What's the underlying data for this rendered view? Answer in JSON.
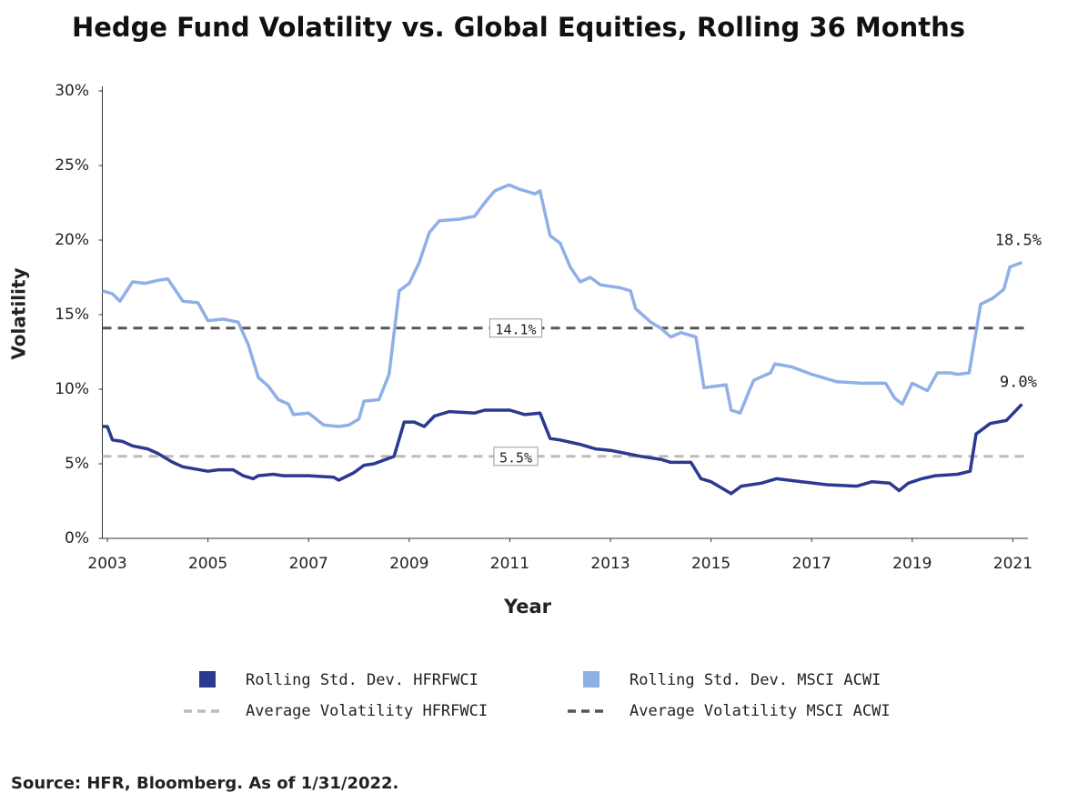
{
  "chart_data": {
    "type": "line",
    "title": "Hedge Fund Volatility vs. Global Equities, Rolling 36 Months",
    "xlabel": "Year",
    "ylabel": "Volatility",
    "source": "Source:  HFR, Bloomberg. As of 1/31/2022.",
    "xlim": [
      2002.9,
      2021.3
    ],
    "xticks": [
      2003,
      2005,
      2007,
      2009,
      2011,
      2013,
      2015,
      2017,
      2019,
      2021
    ],
    "ylim": [
      0,
      30
    ],
    "yticks": [
      {
        "value": 0,
        "label": "0%"
      },
      {
        "value": 5,
        "label": "5%"
      },
      {
        "value": 10,
        "label": "10%"
      },
      {
        "value": 15,
        "label": "15%"
      },
      {
        "value": 20,
        "label": "20%"
      },
      {
        "value": 25,
        "label": "25%"
      },
      {
        "value": 30,
        "label": "30%"
      }
    ],
    "series": [
      {
        "name": "Rolling Std. Dev. HFRFWCI",
        "color": "#2b3990",
        "end_label": "9.0%",
        "x": [
          2002.9,
          2003.0,
          2003.1,
          2003.3,
          2003.5,
          2003.8,
          2004.0,
          2004.3,
          2004.5,
          2005.0,
          2005.2,
          2005.5,
          2005.7,
          2005.9,
          2006.0,
          2006.3,
          2006.5,
          2007.0,
          2007.5,
          2007.6,
          2007.9,
          2008.1,
          2008.3,
          2008.7,
          2008.9,
          2009.1,
          2009.3,
          2009.5,
          2009.8,
          2010.3,
          2010.5,
          2011.0,
          2011.3,
          2011.6,
          2011.8,
          2012.0,
          2012.4,
          2012.7,
          2013.0,
          2013.3,
          2013.6,
          2014.0,
          2014.2,
          2014.6,
          2014.8,
          2015.0,
          2015.2,
          2015.4,
          2015.6,
          2016.0,
          2016.3,
          2016.8,
          2017.3,
          2017.9,
          2018.2,
          2018.55,
          2018.74,
          2018.92,
          2019.19,
          2019.46,
          2019.9,
          2020.15,
          2020.27,
          2020.55,
          2020.87,
          2021.18
        ],
        "values": [
          7.5,
          7.5,
          6.6,
          6.5,
          6.2,
          6.0,
          5.7,
          5.1,
          4.8,
          4.5,
          4.6,
          4.6,
          4.2,
          4.0,
          4.2,
          4.3,
          4.2,
          4.2,
          4.1,
          3.9,
          4.4,
          4.9,
          5.0,
          5.5,
          7.8,
          7.8,
          7.5,
          8.2,
          8.5,
          8.4,
          8.6,
          8.6,
          8.3,
          8.4,
          6.7,
          6.6,
          6.3,
          6.0,
          5.9,
          5.7,
          5.5,
          5.3,
          5.1,
          5.1,
          4.0,
          3.8,
          3.4,
          3.0,
          3.5,
          3.7,
          4.0,
          3.8,
          3.6,
          3.5,
          3.8,
          3.7,
          3.2,
          3.7,
          4.0,
          4.2,
          4.3,
          4.5,
          7.0,
          7.7,
          7.9,
          9.0
        ]
      },
      {
        "name": "Rolling Std. Dev. MSCI ACWI",
        "color": "#8fb0e6",
        "end_label": "18.5%",
        "x": [
          2002.9,
          2003.1,
          2003.25,
          2003.5,
          2003.75,
          2004.0,
          2004.2,
          2004.5,
          2004.8,
          2005.0,
          2005.3,
          2005.6,
          2005.8,
          2006.0,
          2006.2,
          2006.4,
          2006.6,
          2006.7,
          2007.0,
          2007.3,
          2007.6,
          2007.8,
          2008.0,
          2008.1,
          2008.4,
          2008.6,
          2008.8,
          2009.0,
          2009.2,
          2009.4,
          2009.6,
          2010.0,
          2010.3,
          2010.5,
          2010.7,
          2010.98,
          2011.2,
          2011.5,
          2011.6,
          2011.8,
          2012.0,
          2012.2,
          2012.4,
          2012.6,
          2012.8,
          2013.2,
          2013.4,
          2013.5,
          2013.8,
          2014.0,
          2014.2,
          2014.4,
          2014.7,
          2014.86,
          2015.3,
          2015.4,
          2015.58,
          2015.76,
          2015.85,
          2016.18,
          2016.27,
          2016.6,
          2017.0,
          2017.5,
          2018.0,
          2018.47,
          2018.65,
          2018.8,
          2019.0,
          2019.3,
          2019.5,
          2019.75,
          2019.9,
          2020.13,
          2020.36,
          2020.6,
          2020.82,
          2020.94,
          2021.18
        ],
        "values": [
          16.6,
          16.4,
          15.9,
          17.2,
          17.1,
          17.3,
          17.4,
          15.9,
          15.8,
          14.6,
          14.7,
          14.5,
          13.0,
          10.8,
          10.2,
          9.3,
          9.0,
          8.3,
          8.4,
          7.6,
          7.5,
          7.6,
          8.0,
          9.2,
          9.3,
          11.0,
          16.6,
          17.1,
          18.5,
          20.5,
          21.3,
          21.4,
          21.6,
          22.5,
          23.3,
          23.7,
          23.4,
          23.1,
          23.3,
          20.3,
          19.8,
          18.2,
          17.2,
          17.5,
          17.0,
          16.8,
          16.6,
          15.4,
          14.5,
          14.1,
          13.5,
          13.8,
          13.5,
          10.1,
          10.3,
          8.6,
          8.4,
          9.9,
          10.6,
          11.1,
          11.7,
          11.5,
          11.0,
          10.5,
          10.4,
          10.4,
          9.4,
          9.0,
          10.4,
          9.9,
          11.1,
          11.1,
          11.0,
          11.1,
          15.7,
          16.1,
          16.7,
          18.2,
          18.5
        ]
      }
    ],
    "reference_lines": [
      {
        "name": "Average Volatility HFRFWCI",
        "value": 5.5,
        "label": "5.5%",
        "color": "#bbbbbb"
      },
      {
        "name": "Average Volatility MSCI ACWI",
        "value": 14.1,
        "label": "14.1%",
        "color": "#555555"
      }
    ]
  }
}
